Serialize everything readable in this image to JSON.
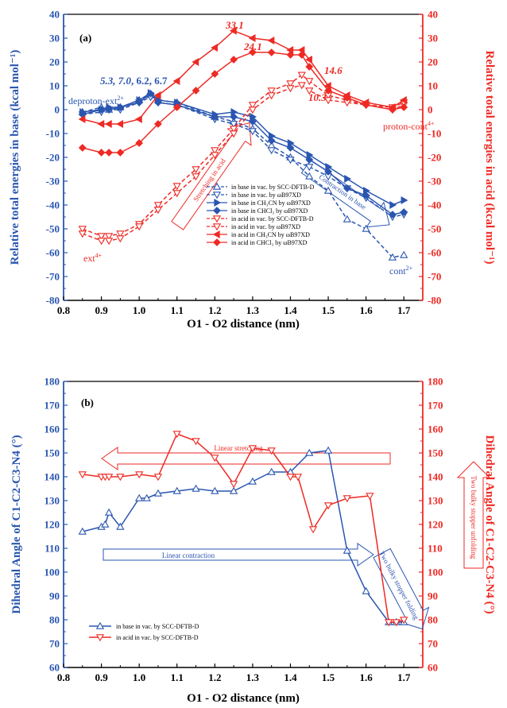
{
  "colors": {
    "blue": "#2a56b0",
    "red": "#ee2a24",
    "axis": "#000000"
  },
  "panel_a": {
    "label": "(a)",
    "xlabel": "O1 - O2 distance (nm)",
    "ylabel_left": "Relative total energies in base (kcal mol⁻¹)",
    "ylabel_right": "Relative total energies in acid (kcal mol⁻¹)",
    "annotations": {
      "base_peaks_italic_a": "5.3",
      "base_peaks_italic_b": "7.0",
      "base_peaks_plain": "6.2, 6.7",
      "acid_33": "33.1",
      "acid_24": "24.1",
      "acid_146": "14.6",
      "acid_103": "10.3",
      "deproton": "deproton-ext",
      "deproton_sup": "2+",
      "proton": "proton-cont",
      "proton_sup": "4+",
      "ext": "ext",
      "ext_sup": "4+",
      "cont": "cont",
      "cont_sup": "2+"
    },
    "arrows": {
      "stretching": "Stretching in acid",
      "contraction": "Contraction in base"
    }
  },
  "panel_b": {
    "label": "(b)",
    "xlabel": "O1 - O2 distance (nm)",
    "ylabel_left": "Dihedral Angle of C1-C2-C3-N4 (°)",
    "ylabel_right": "Dihedral Angle of C1-C2-C3-N4 (°)",
    "arrows": {
      "linear_stretching": "Linear stretching",
      "linear_contraction": "Linear contraction",
      "stopper_folding": "Two bulky stopper folding",
      "stopper_unfolding": "Two bulky stopper unfolding"
    }
  },
  "chart_data": [
    {
      "type": "line",
      "panel": "(a)",
      "xlabel": "O1 - O2 distance (nm)",
      "ylabel": "Relative total energies in base (kcal mol⁻¹)",
      "y2label": "Relative total energies in acid (kcal mol⁻¹)",
      "xlim": [
        0.8,
        1.75
      ],
      "xticks": [
        0.8,
        0.9,
        1.0,
        1.1,
        1.2,
        1.3,
        1.4,
        1.5,
        1.6,
        1.7
      ],
      "ylim": [
        -80,
        40
      ],
      "y2lim": [
        -80,
        40
      ],
      "yticks": [
        -80,
        -70,
        -60,
        -50,
        -40,
        -30,
        -20,
        -10,
        0,
        10,
        20,
        30,
        40
      ],
      "legend_position": "bottom-center",
      "series": [
        {
          "name": "in base in vac. by SCC-DFTB-D",
          "axis": "left",
          "color": "#2a56b0",
          "marker": "tri-up-open",
          "dash": true,
          "x": [
            0.85,
            0.9,
            0.92,
            0.95,
            1.0,
            1.03,
            1.05,
            1.1,
            1.2,
            1.25,
            1.3,
            1.35,
            1.4,
            1.45,
            1.5,
            1.55,
            1.6,
            1.67,
            1.7
          ],
          "y": [
            -1,
            1,
            0,
            1,
            4,
            6.2,
            4,
            3,
            -3,
            -5,
            -8,
            -15,
            -20,
            -28,
            -34,
            -46,
            -50,
            -62,
            -61
          ]
        },
        {
          "name": "in base in vac. by ωB97XD",
          "axis": "left",
          "color": "#2a56b0",
          "marker": "tri-down-open",
          "dash": true,
          "x": [
            0.85,
            0.9,
            0.92,
            0.95,
            1.0,
            1.03,
            1.05,
            1.1,
            1.2,
            1.25,
            1.3,
            1.35,
            1.4,
            1.45,
            1.5,
            1.55,
            1.6,
            1.67,
            1.7
          ],
          "y": [
            -2,
            -1,
            0,
            0,
            3,
            5.3,
            3,
            2,
            -4,
            -6,
            -9,
            -17,
            -21,
            -24,
            -28,
            -33,
            -37,
            -45,
            -44
          ]
        },
        {
          "name": "in base in CH₃CN by ωB97XD",
          "axis": "left",
          "color": "#2a56b0",
          "marker": "tri-right",
          "dash": false,
          "x": [
            0.85,
            0.9,
            0.92,
            0.95,
            1.0,
            1.03,
            1.05,
            1.1,
            1.2,
            1.25,
            1.3,
            1.35,
            1.4,
            1.45,
            1.5,
            1.55,
            1.6,
            1.67,
            1.7
          ],
          "y": [
            -1,
            0,
            1,
            1,
            4,
            7.0,
            4,
            3,
            -2,
            -1,
            -3,
            -11,
            -14,
            -19,
            -24,
            -29,
            -34,
            -40,
            -38
          ]
        },
        {
          "name": "in base in CHCl₃ by ωB97XD",
          "axis": "left",
          "color": "#2a56b0",
          "marker": "diamond-half",
          "dash": false,
          "x": [
            0.85,
            0.9,
            0.92,
            0.95,
            1.0,
            1.03,
            1.05,
            1.1,
            1.2,
            1.25,
            1.3,
            1.35,
            1.4,
            1.45,
            1.5,
            1.55,
            1.6,
            1.67,
            1.7
          ],
          "y": [
            -2,
            0,
            0,
            1,
            3,
            6.7,
            3,
            2,
            -3,
            -3,
            -5,
            -13,
            -16,
            -21,
            -26,
            -33,
            -36,
            -44,
            -43
          ]
        },
        {
          "name": "in acid in vac. by SCC-DFTB-D",
          "axis": "right",
          "color": "#ee2a24",
          "marker": "tri-down-open",
          "dash": true,
          "x": [
            0.85,
            0.9,
            0.92,
            0.95,
            1.0,
            1.05,
            1.1,
            1.15,
            1.2,
            1.25,
            1.3,
            1.35,
            1.4,
            1.43,
            1.45,
            1.5,
            1.55,
            1.6,
            1.67,
            1.7
          ],
          "y": [
            -50,
            -53,
            -53,
            -52,
            -48,
            -40,
            -32,
            -25,
            -17,
            -8,
            2,
            8,
            11,
            14.6,
            12,
            6,
            4,
            2,
            0,
            2
          ]
        },
        {
          "name": "in acid in vac. by ωB97XD",
          "axis": "right",
          "color": "#ee2a24",
          "marker": "tri-down-open",
          "dash": true,
          "x": [
            0.85,
            0.9,
            0.92,
            0.95,
            1.0,
            1.05,
            1.1,
            1.15,
            1.2,
            1.25,
            1.3,
            1.35,
            1.4,
            1.43,
            1.45,
            1.5,
            1.55,
            1.6,
            1.67,
            1.7
          ],
          "y": [
            -52,
            -55,
            -55,
            -54,
            -49,
            -42,
            -35,
            -28,
            -19,
            -10,
            0,
            6,
            9,
            10.3,
            8,
            4,
            3,
            2,
            1,
            3
          ]
        },
        {
          "name": "in acid in CH₃CN by ωB97XD",
          "axis": "right",
          "color": "#ee2a24",
          "marker": "tri-left",
          "dash": false,
          "x": [
            0.85,
            0.9,
            0.92,
            0.95,
            1.0,
            1.05,
            1.1,
            1.15,
            1.2,
            1.25,
            1.3,
            1.35,
            1.4,
            1.43,
            1.45,
            1.5,
            1.55,
            1.6,
            1.67,
            1.7
          ],
          "y": [
            -4,
            -6,
            -6,
            -6,
            -4,
            6,
            12,
            20,
            26,
            33.1,
            30,
            29,
            25,
            25,
            21,
            10,
            6,
            3,
            1,
            4
          ]
        },
        {
          "name": "in acid in CHCl₃ by ωB97XD",
          "axis": "right",
          "color": "#ee2a24",
          "marker": "diamond-half",
          "dash": false,
          "x": [
            0.85,
            0.9,
            0.92,
            0.95,
            1.0,
            1.05,
            1.1,
            1.15,
            1.2,
            1.25,
            1.3,
            1.35,
            1.4,
            1.43,
            1.45,
            1.5,
            1.55,
            1.6,
            1.67,
            1.7
          ],
          "y": [
            -16,
            -18,
            -18,
            -18,
            -14,
            -6,
            1,
            8,
            15,
            21,
            24.1,
            24,
            23,
            23,
            18,
            8,
            5,
            2,
            0,
            1
          ]
        }
      ]
    },
    {
      "type": "line",
      "panel": "(b)",
      "xlabel": "O1 - O2 distance (nm)",
      "ylabel": "Dihedral Angle of C1-C2-C3-N4 (°)",
      "y2label": "Dihedral Angle of C1-C2-C3-N4 (°)",
      "xlim": [
        0.8,
        1.75
      ],
      "xticks": [
        0.8,
        0.9,
        1.0,
        1.1,
        1.2,
        1.3,
        1.4,
        1.5,
        1.6,
        1.7
      ],
      "ylim": [
        60,
        180
      ],
      "y2lim": [
        60,
        180
      ],
      "yticks": [
        60,
        70,
        80,
        90,
        100,
        110,
        120,
        130,
        140,
        150,
        160,
        170,
        180
      ],
      "legend_position": "bottom-left",
      "series": [
        {
          "name": "in base in vac. by SCC-DFTB-D",
          "axis": "left",
          "color": "#2a56b0",
          "marker": "tri-up-open",
          "dash": false,
          "x": [
            0.85,
            0.9,
            0.91,
            0.92,
            0.95,
            1.0,
            1.02,
            1.05,
            1.1,
            1.15,
            1.2,
            1.25,
            1.3,
            1.35,
            1.4,
            1.45,
            1.5,
            1.55,
            1.6,
            1.66,
            1.68,
            1.7
          ],
          "y": [
            117,
            119,
            120,
            125,
            119,
            131,
            131,
            133,
            134,
            135,
            134,
            134,
            138,
            142,
            142,
            150,
            151,
            109,
            92,
            79,
            79,
            79
          ]
        },
        {
          "name": "in acid in vac. by SCC-DFTB-D",
          "axis": "right",
          "color": "#ee2a24",
          "marker": "tri-down-open",
          "dash": false,
          "x": [
            0.85,
            0.9,
            0.91,
            0.92,
            0.95,
            1.0,
            1.05,
            1.1,
            1.15,
            1.2,
            1.25,
            1.3,
            1.35,
            1.4,
            1.42,
            1.46,
            1.5,
            1.55,
            1.61,
            1.66,
            1.68,
            1.7
          ],
          "y": [
            141,
            140,
            140,
            140,
            140,
            141,
            140,
            158,
            155,
            148,
            137,
            152,
            151,
            140,
            140,
            118,
            128,
            131,
            132,
            79,
            79,
            80
          ]
        }
      ]
    }
  ]
}
